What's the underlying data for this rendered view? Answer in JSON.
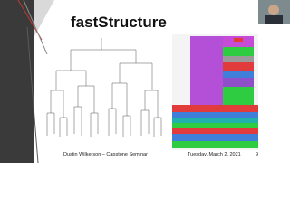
{
  "slide": {
    "title": "fastStructure",
    "footer_left": "Dustin Wilkerson – Capstone Seminar",
    "footer_date": "Tuesday, March 2, 2021",
    "page_number": "9"
  }
}
